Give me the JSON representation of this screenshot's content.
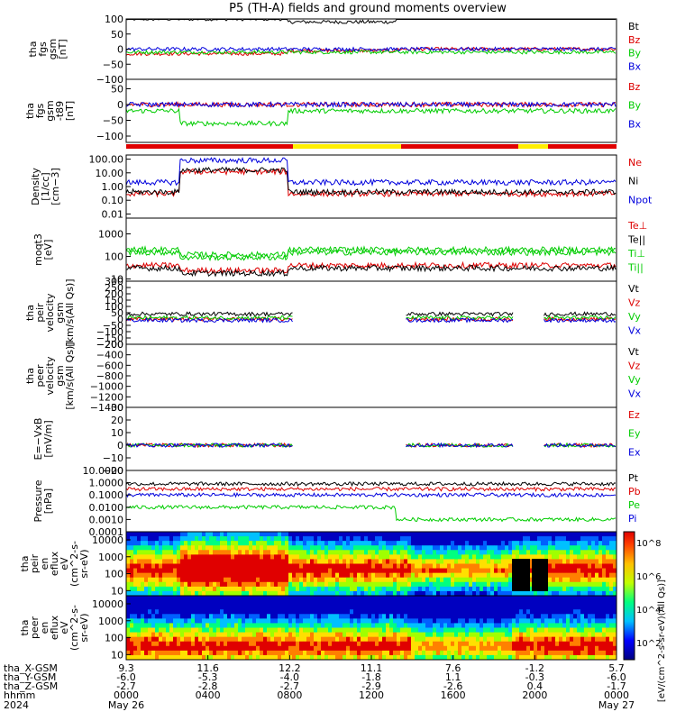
{
  "title": "P5 (TH-A) fields and ground moments overview",
  "chart_data": {
    "type": "line",
    "x_tick_labels": {
      "hhmm": [
        "0000",
        "0400",
        "0800",
        "1200",
        "1600",
        "2000",
        "0000"
      ],
      "date_labels": [
        "May 26",
        "May 27"
      ],
      "year": "2024",
      "row_labels": [
        "tha_X-GSM",
        "tha_Y-GSM",
        "tha_Z-GSM",
        "hhmm",
        "2024"
      ],
      "X_GSM": [
        "9.3",
        "11.6",
        "12.2",
        "11.1",
        "7.6",
        "-1.2",
        "5.7"
      ],
      "Y_GSM": [
        "-6.0",
        "-5.3",
        "-4.0",
        "-1.8",
        "1.1",
        "-0.3",
        "-6.0"
      ],
      "Z_GSM": [
        "-2.7",
        "-2.8",
        "-2.7",
        "-2.9",
        "-2.6",
        "0.4",
        "-1.7"
      ]
    },
    "panels": [
      {
        "ylabel": [
          "tha",
          "fgs",
          "gsm",
          "[nT]"
        ],
        "ticks": [
          "100",
          "50",
          "0",
          "−50",
          "−100"
        ],
        "ylim": [
          -100,
          100
        ],
        "legend": [
          {
            "name": "Bt",
            "color": "#000000"
          },
          {
            "name": "Bz",
            "color": "#dd0000"
          },
          {
            "name": "By",
            "color": "#00cc00"
          },
          {
            "name": "Bx",
            "color": "#0000dd"
          }
        ]
      },
      {
        "ylabel": [
          "tha",
          "fgs",
          "gsm",
          "-t89",
          "[nT]"
        ],
        "ticks": [
          "50",
          "0",
          "−50",
          "−100"
        ],
        "ylim": [
          -120,
          80
        ],
        "legend": [
          {
            "name": "Bz",
            "color": "#dd0000"
          },
          {
            "name": "By",
            "color": "#00cc00"
          },
          {
            "name": "Bx",
            "color": "#0000dd"
          }
        ]
      },
      {
        "ylabel": [
          "Density",
          "[1/cc]",
          "[cm−3]"
        ],
        "ticks": [
          "100.00",
          "10.00",
          "1.00",
          "0.10",
          "0.01"
        ],
        "ylim": [
          0.005,
          200
        ],
        "scale": "log",
        "legend": [
          {
            "name": "Ne",
            "color": "#dd0000"
          },
          {
            "name": "Ni",
            "color": "#000000"
          },
          {
            "name": "Npot",
            "color": "#0000dd"
          }
        ]
      },
      {
        "ylabel": [
          "moqt3",
          "[eV]"
        ],
        "ticks": [
          "1000",
          "100",
          "10"
        ],
        "ylim": [
          8,
          5000
        ],
        "scale": "log",
        "legend": [
          {
            "name": "Te⊥",
            "color": "#dd0000"
          },
          {
            "name": "Te||",
            "color": "#000000"
          },
          {
            "name": "Ti⊥",
            "color": "#00cc00"
          },
          {
            "name": "Ti||",
            "color": "#00cc00"
          }
        ]
      },
      {
        "ylabel": [
          "tha",
          "peir",
          "velocity",
          "gsm",
          "[km/s(All Qs)]"
        ],
        "ticks": [
          "300",
          "250",
          "200",
          "150",
          "100",
          "50",
          "0",
          "−50",
          "−100",
          "−150",
          "−200"
        ],
        "ylim": [
          -200,
          300
        ],
        "legend": [
          {
            "name": "Vt",
            "color": "#000000"
          },
          {
            "name": "Vz",
            "color": "#dd0000"
          },
          {
            "name": "Vy",
            "color": "#00cc00"
          },
          {
            "name": "Vx",
            "color": "#0000dd"
          }
        ]
      },
      {
        "ylabel": [
          "tha",
          "peer",
          "velocity",
          "gsm",
          "[km/s(All Qs)]"
        ],
        "ticks": [
          "−200",
          "−400",
          "−600",
          "−800",
          "−1000",
          "−1200",
          "−1400"
        ],
        "ylim": [
          -1400,
          -200
        ],
        "legend": [
          {
            "name": "Vt",
            "color": "#000000"
          },
          {
            "name": "Vz",
            "color": "#dd0000"
          },
          {
            "name": "Vy",
            "color": "#00cc00"
          },
          {
            "name": "Vx",
            "color": "#0000dd"
          }
        ]
      },
      {
        "ylabel": [
          "E=−VxB",
          "[mV/m]"
        ],
        "ticks": [
          "30",
          "20",
          "10",
          "0",
          "−10",
          "−20"
        ],
        "ylim": [
          -20,
          30
        ],
        "legend": [
          {
            "name": "Ez",
            "color": "#dd0000"
          },
          {
            "name": "Ey",
            "color": "#00cc00"
          },
          {
            "name": "Ex",
            "color": "#0000dd"
          }
        ]
      },
      {
        "ylabel": [
          "Pressure",
          "[nPa]"
        ],
        "ticks": [
          "10.0000",
          "1.0000",
          "0.1000",
          "0.0100",
          "0.0010",
          "0.0001"
        ],
        "ylim": [
          0.0001,
          10
        ],
        "scale": "log",
        "legend": [
          {
            "name": "Pt",
            "color": "#000000"
          },
          {
            "name": "Pb",
            "color": "#dd0000"
          },
          {
            "name": "Pe",
            "color": "#00cc00"
          },
          {
            "name": "Pi",
            "color": "#0000dd"
          }
        ]
      },
      {
        "ylabel": [
          "tha",
          "peir",
          "en",
          "eflux",
          "eV",
          "(cm^2-s-",
          "sr-eV)"
        ],
        "ticks": [
          "10000",
          "1000",
          "100",
          "10"
        ],
        "ylim": [
          5,
          30000
        ],
        "scale": "log"
      },
      {
        "ylabel": [
          "tha",
          "peer",
          "en",
          "eflux",
          "eV",
          "(cm^2-s-",
          "sr-eV)"
        ],
        "ticks": [
          "10000",
          "1000",
          "100",
          "10"
        ],
        "ylim": [
          5,
          30000
        ],
        "scale": "log"
      }
    ],
    "colorbar": {
      "ticks": [
        "10^8",
        "10^6",
        "10^4",
        "10^2"
      ],
      "label": "[eV/(cm^2-s-sr-eV)(All Qs)]"
    }
  }
}
